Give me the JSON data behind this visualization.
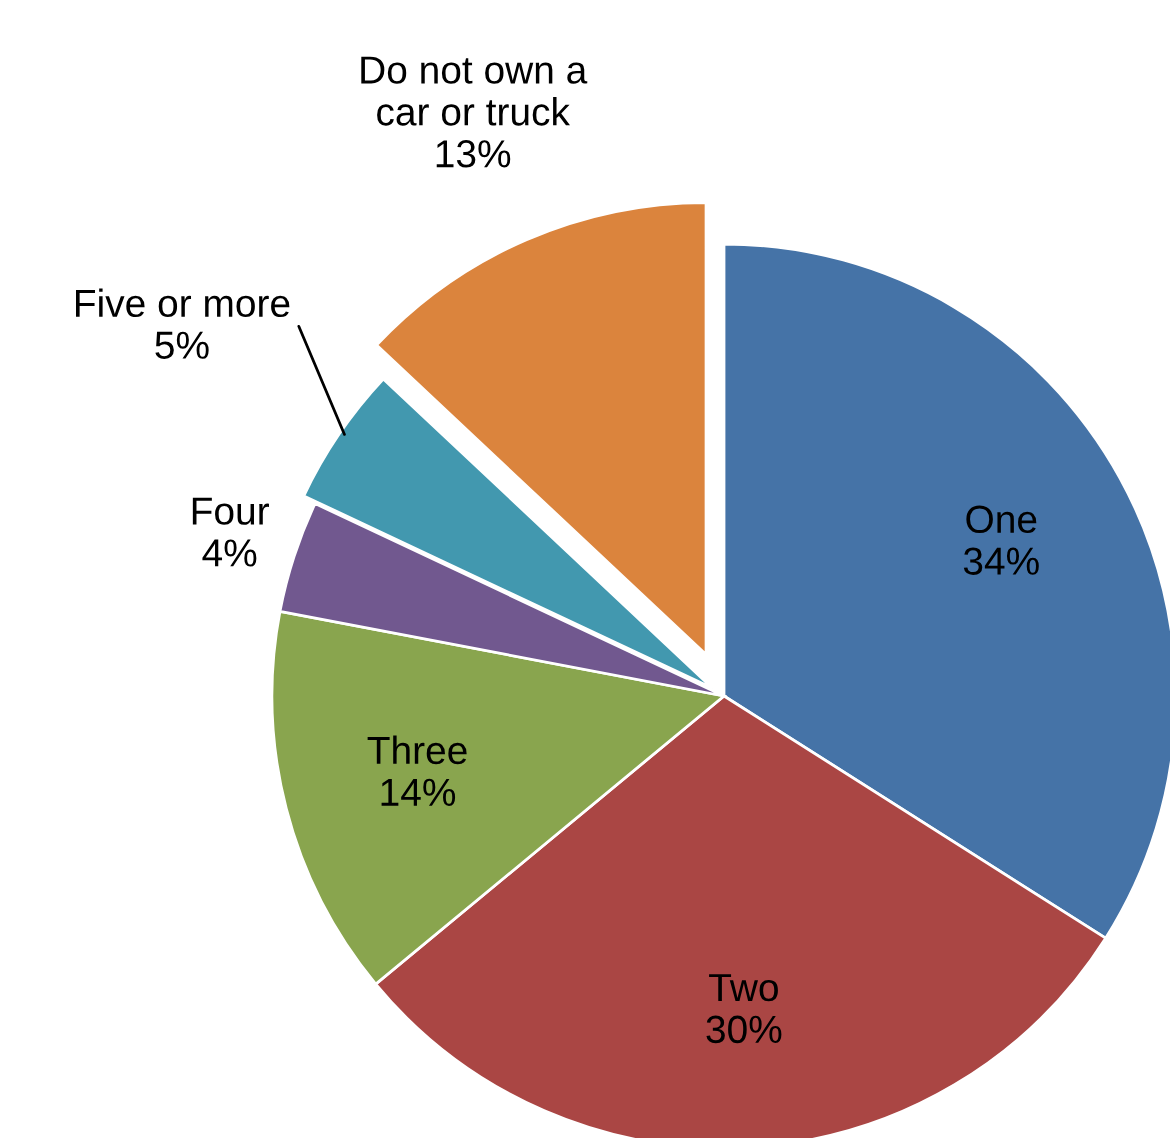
{
  "chart_data": {
    "type": "pie",
    "categories": [
      "One",
      "Two",
      "Three",
      "Four",
      "Five or more",
      "Do not own a\ncar or truck"
    ],
    "values": [
      34,
      30,
      14,
      4,
      5,
      13
    ],
    "value_labels": [
      "34%",
      "30%",
      "14%",
      "4%",
      "5%",
      "13%"
    ],
    "colors": [
      "#4573a7",
      "#aa4644",
      "#89a54e",
      "#71588f",
      "#4298af",
      "#db843d"
    ]
  }
}
